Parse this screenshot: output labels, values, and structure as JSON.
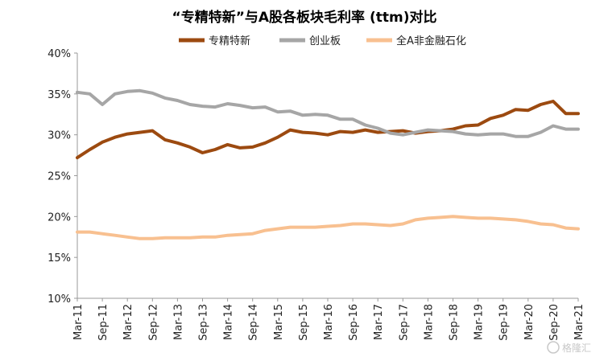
{
  "chart_data": {
    "type": "line",
    "title": "“专精特新”与A股各板块毛利率 (ttm)对比",
    "xlabel": "",
    "ylabel": "",
    "ylim": [
      10,
      40
    ],
    "yticks": [
      "10%",
      "15%",
      "20%",
      "25%",
      "30%",
      "35%",
      "40%"
    ],
    "grid": false,
    "legend_position": "top",
    "x_tick_labels": [
      "Mar-11",
      "Sep-11",
      "Mar-12",
      "Sep-12",
      "Mar-13",
      "Sep-13",
      "Mar-14",
      "Sep-14",
      "Mar-15",
      "Sep-15",
      "Mar-16",
      "Sep-16",
      "Mar-17",
      "Sep-17",
      "Mar-18",
      "Sep-18",
      "Mar-19",
      "Sep-19",
      "Mar-20",
      "Sep-20",
      "Mar-21"
    ],
    "x_quarters": [
      "Mar-11",
      "Jun-11",
      "Sep-11",
      "Dec-11",
      "Mar-12",
      "Jun-12",
      "Sep-12",
      "Dec-12",
      "Mar-13",
      "Jun-13",
      "Sep-13",
      "Dec-13",
      "Mar-14",
      "Jun-14",
      "Sep-14",
      "Dec-14",
      "Mar-15",
      "Jun-15",
      "Sep-15",
      "Dec-15",
      "Mar-16",
      "Jun-16",
      "Sep-16",
      "Dec-16",
      "Mar-17",
      "Jun-17",
      "Sep-17",
      "Dec-17",
      "Mar-18",
      "Jun-18",
      "Sep-18",
      "Dec-18",
      "Mar-19",
      "Jun-19",
      "Sep-19",
      "Dec-19",
      "Mar-20",
      "Jun-20",
      "Sep-20",
      "Dec-20",
      "Mar-21"
    ],
    "series": [
      {
        "name": "专精特新",
        "color": "#9c4a10",
        "values": [
          27.2,
          28.2,
          29.1,
          29.7,
          30.1,
          30.3,
          30.5,
          29.4,
          29.0,
          28.5,
          27.8,
          28.2,
          28.8,
          28.4,
          28.5,
          29.0,
          29.7,
          30.6,
          30.3,
          30.2,
          30.0,
          30.4,
          30.3,
          30.6,
          30.3,
          30.4,
          30.5,
          30.2,
          30.4,
          30.5,
          30.7,
          31.1,
          31.2,
          32.0,
          32.4,
          33.1,
          33.0,
          33.7,
          34.1,
          32.6,
          32.6
        ]
      },
      {
        "name": "创业板",
        "color": "#a6a6a6",
        "values": [
          35.2,
          35.0,
          33.7,
          35.0,
          35.3,
          35.4,
          35.1,
          34.5,
          34.2,
          33.7,
          33.5,
          33.4,
          33.8,
          33.6,
          33.3,
          33.4,
          32.8,
          32.9,
          32.4,
          32.5,
          32.4,
          31.9,
          31.9,
          31.2,
          30.8,
          30.2,
          30.0,
          30.3,
          30.6,
          30.5,
          30.4,
          30.1,
          30.0,
          30.1,
          30.1,
          29.8,
          29.8,
          30.3,
          31.1,
          30.7,
          30.7
        ]
      },
      {
        "name": "全A非金融石化",
        "color": "#f8c090",
        "values": [
          18.1,
          18.1,
          17.9,
          17.7,
          17.5,
          17.3,
          17.3,
          17.4,
          17.4,
          17.4,
          17.5,
          17.5,
          17.7,
          17.8,
          17.9,
          18.3,
          18.5,
          18.7,
          18.7,
          18.7,
          18.8,
          18.9,
          19.1,
          19.1,
          19.0,
          18.9,
          19.1,
          19.6,
          19.8,
          19.9,
          20.0,
          19.9,
          19.8,
          19.8,
          19.7,
          19.6,
          19.4,
          19.1,
          19.0,
          18.6,
          18.5
        ]
      }
    ]
  },
  "watermark": "格隆汇"
}
